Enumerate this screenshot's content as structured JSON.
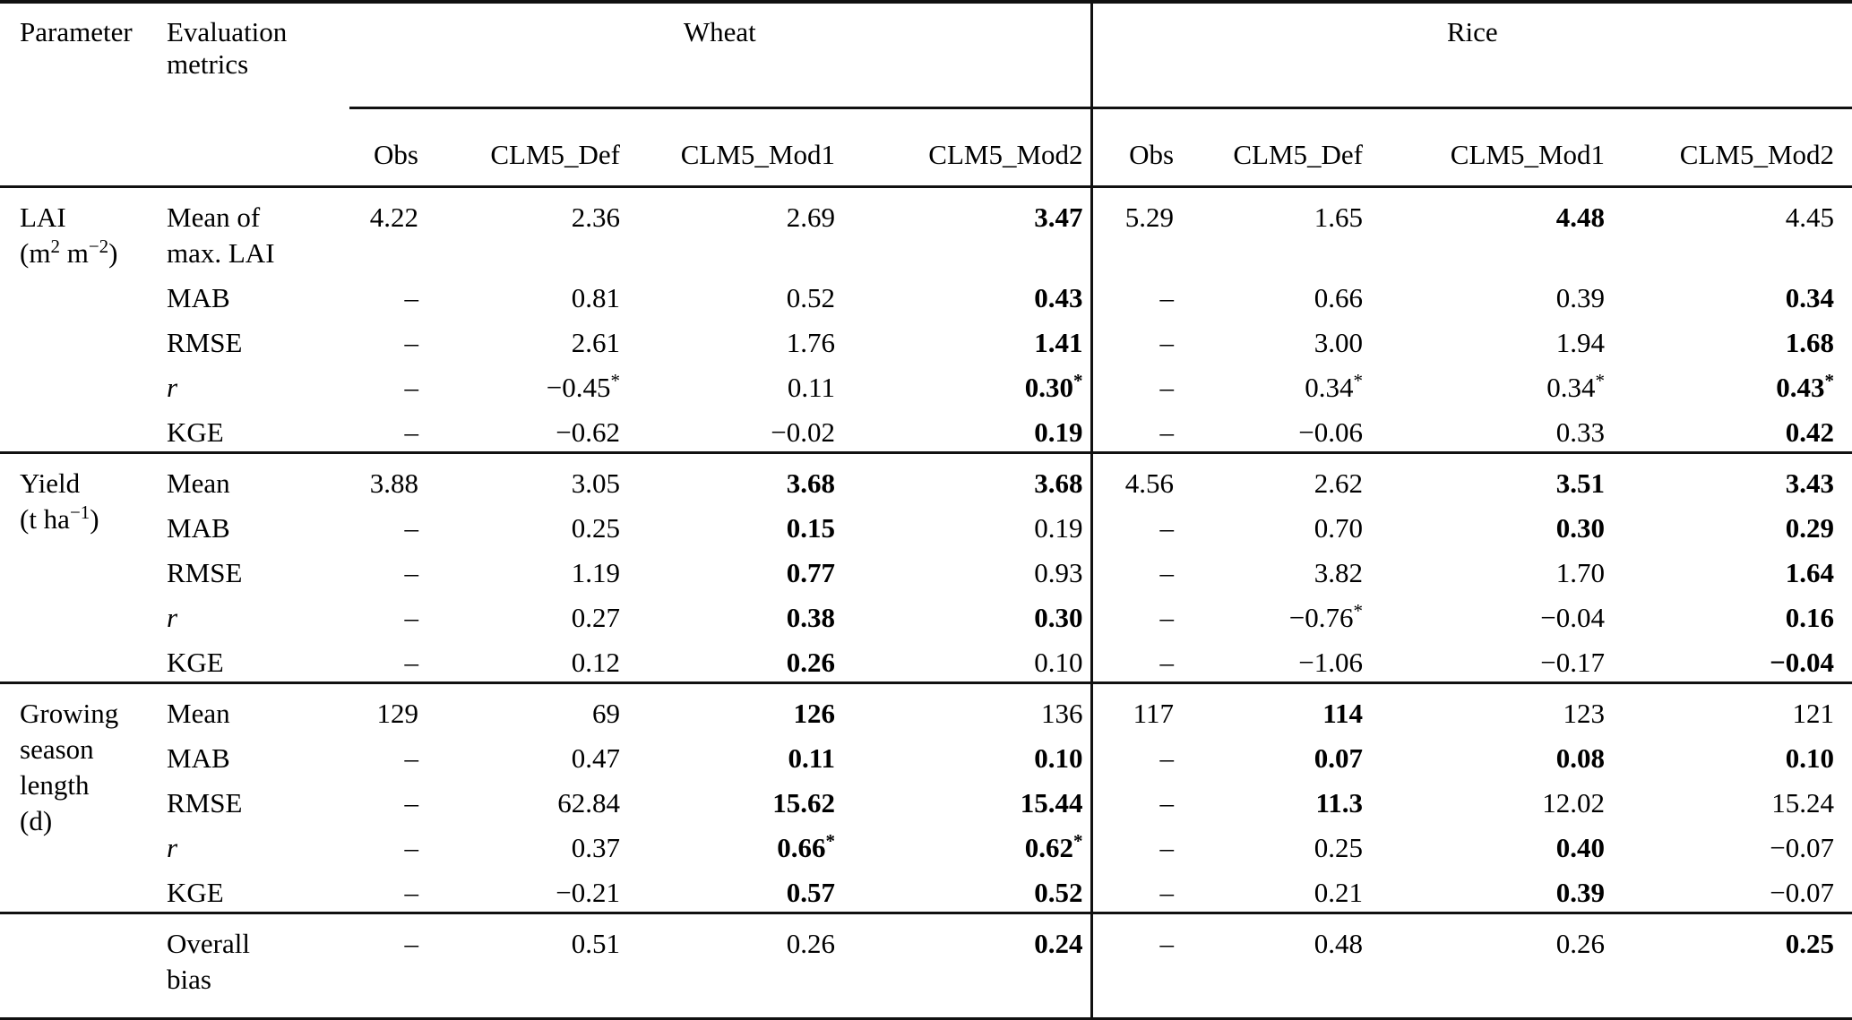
{
  "header": {
    "param_label": "Parameter",
    "metrics_label_lines": [
      "Evaluation",
      "metrics"
    ],
    "group_labels": [
      "Wheat",
      "Rice"
    ],
    "columns": [
      "Obs",
      "CLM5_Def",
      "CLM5_Mod1",
      "CLM5_Mod2"
    ]
  },
  "sections": [
    {
      "name": "LAI",
      "param_lines": [
        [
          {
            "t": "LAI"
          }
        ],
        [
          {
            "t": "(m"
          },
          {
            "t": "2",
            "sup": true
          },
          {
            "t": " m"
          },
          {
            "t": "−2",
            "sup": true
          },
          {
            "t": ")"
          }
        ]
      ],
      "rows": [
        {
          "metric_lines": [
            "Mean of",
            "max. LAI"
          ],
          "wheat": [
            {
              "v": "4.22"
            },
            {
              "v": "2.36"
            },
            {
              "v": "2.69"
            },
            {
              "v": "3.47",
              "b": true
            }
          ],
          "rice": [
            {
              "v": "5.29"
            },
            {
              "v": "1.65"
            },
            {
              "v": "4.48",
              "b": true
            },
            {
              "v": "4.45"
            }
          ]
        },
        {
          "metric_lines": [
            "MAB"
          ],
          "wheat": [
            {
              "v": "–"
            },
            {
              "v": "0.81"
            },
            {
              "v": "0.52"
            },
            {
              "v": "0.43",
              "b": true
            }
          ],
          "rice": [
            {
              "v": "–"
            },
            {
              "v": "0.66"
            },
            {
              "v": "0.39"
            },
            {
              "v": "0.34",
              "b": true
            }
          ]
        },
        {
          "metric_lines": [
            "RMSE"
          ],
          "wheat": [
            {
              "v": "–"
            },
            {
              "v": "2.61"
            },
            {
              "v": "1.76"
            },
            {
              "v": "1.41",
              "b": true
            }
          ],
          "rice": [
            {
              "v": "–"
            },
            {
              "v": "3.00"
            },
            {
              "v": "1.94"
            },
            {
              "v": "1.68",
              "b": true
            }
          ]
        },
        {
          "metric_lines": [
            "r"
          ],
          "italic": true,
          "wheat": [
            {
              "v": "–"
            },
            {
              "v": "−0.45",
              "s": true
            },
            {
              "v": "0.11"
            },
            {
              "v": "0.30",
              "b": true,
              "s": true
            }
          ],
          "rice": [
            {
              "v": "–"
            },
            {
              "v": "0.34",
              "s": true
            },
            {
              "v": "0.34",
              "s": true
            },
            {
              "v": "0.43",
              "b": true,
              "s": true
            }
          ]
        },
        {
          "metric_lines": [
            "KGE"
          ],
          "wheat": [
            {
              "v": "–"
            },
            {
              "v": "−0.62"
            },
            {
              "v": "−0.02"
            },
            {
              "v": "0.19",
              "b": true
            }
          ],
          "rice": [
            {
              "v": "–"
            },
            {
              "v": "−0.06"
            },
            {
              "v": "0.33"
            },
            {
              "v": "0.42",
              "b": true
            }
          ]
        }
      ]
    },
    {
      "name": "Yield",
      "param_lines": [
        [
          {
            "t": "Yield"
          }
        ],
        [
          {
            "t": "(t ha"
          },
          {
            "t": "−1",
            "sup": true
          },
          {
            "t": ")"
          }
        ]
      ],
      "rows": [
        {
          "metric_lines": [
            "Mean"
          ],
          "wheat": [
            {
              "v": "3.88"
            },
            {
              "v": "3.05"
            },
            {
              "v": "3.68",
              "b": true
            },
            {
              "v": "3.68",
              "b": true
            }
          ],
          "rice": [
            {
              "v": "4.56"
            },
            {
              "v": "2.62"
            },
            {
              "v": "3.51",
              "b": true
            },
            {
              "v": "3.43",
              "b": true
            }
          ]
        },
        {
          "metric_lines": [
            "MAB"
          ],
          "wheat": [
            {
              "v": "–"
            },
            {
              "v": "0.25"
            },
            {
              "v": "0.15",
              "b": true
            },
            {
              "v": "0.19"
            }
          ],
          "rice": [
            {
              "v": "–"
            },
            {
              "v": "0.70"
            },
            {
              "v": "0.30",
              "b": true
            },
            {
              "v": "0.29",
              "b": true
            }
          ]
        },
        {
          "metric_lines": [
            "RMSE"
          ],
          "wheat": [
            {
              "v": "–"
            },
            {
              "v": "1.19"
            },
            {
              "v": "0.77",
              "b": true
            },
            {
              "v": "0.93"
            }
          ],
          "rice": [
            {
              "v": "–"
            },
            {
              "v": "3.82"
            },
            {
              "v": "1.70"
            },
            {
              "v": "1.64",
              "b": true
            }
          ]
        },
        {
          "metric_lines": [
            "r"
          ],
          "italic": true,
          "wheat": [
            {
              "v": "–"
            },
            {
              "v": "0.27"
            },
            {
              "v": "0.38",
              "b": true
            },
            {
              "v": "0.30",
              "b": true
            }
          ],
          "rice": [
            {
              "v": "–"
            },
            {
              "v": "−0.76",
              "s": true
            },
            {
              "v": "−0.04"
            },
            {
              "v": "0.16",
              "b": true
            }
          ]
        },
        {
          "metric_lines": [
            "KGE"
          ],
          "wheat": [
            {
              "v": "–"
            },
            {
              "v": "0.12"
            },
            {
              "v": "0.26",
              "b": true
            },
            {
              "v": "0.10"
            }
          ],
          "rice": [
            {
              "v": "–"
            },
            {
              "v": "−1.06"
            },
            {
              "v": "−0.17"
            },
            {
              "v": "−0.04",
              "b": true
            }
          ]
        }
      ]
    },
    {
      "name": "Growing season length",
      "param_lines": [
        [
          {
            "t": "Growing"
          }
        ],
        [
          {
            "t": "season"
          }
        ],
        [
          {
            "t": "length"
          }
        ],
        [
          {
            "t": "(d)"
          }
        ]
      ],
      "rows": [
        {
          "metric_lines": [
            "Mean"
          ],
          "wheat": [
            {
              "v": "129"
            },
            {
              "v": "69"
            },
            {
              "v": "126",
              "b": true
            },
            {
              "v": "136"
            }
          ],
          "rice": [
            {
              "v": "117"
            },
            {
              "v": "114",
              "b": true
            },
            {
              "v": "123"
            },
            {
              "v": "121"
            }
          ]
        },
        {
          "metric_lines": [
            "MAB"
          ],
          "wheat": [
            {
              "v": "–"
            },
            {
              "v": "0.47"
            },
            {
              "v": "0.11",
              "b": true
            },
            {
              "v": "0.10",
              "b": true
            }
          ],
          "rice": [
            {
              "v": "–"
            },
            {
              "v": "0.07",
              "b": true
            },
            {
              "v": "0.08",
              "b": true
            },
            {
              "v": "0.10",
              "b": true
            }
          ]
        },
        {
          "metric_lines": [
            "RMSE"
          ],
          "wheat": [
            {
              "v": "–"
            },
            {
              "v": "62.84"
            },
            {
              "v": "15.62",
              "b": true
            },
            {
              "v": "15.44",
              "b": true
            }
          ],
          "rice": [
            {
              "v": "–"
            },
            {
              "v": "11.3",
              "b": true
            },
            {
              "v": "12.02"
            },
            {
              "v": "15.24"
            }
          ]
        },
        {
          "metric_lines": [
            "r"
          ],
          "italic": true,
          "wheat": [
            {
              "v": "–"
            },
            {
              "v": "0.37"
            },
            {
              "v": "0.66",
              "b": true,
              "s": true
            },
            {
              "v": "0.62",
              "b": true,
              "s": true
            }
          ],
          "rice": [
            {
              "v": "–"
            },
            {
              "v": "0.25"
            },
            {
              "v": "0.40",
              "b": true
            },
            {
              "v": "−0.07"
            }
          ]
        },
        {
          "metric_lines": [
            "KGE"
          ],
          "wheat": [
            {
              "v": "–"
            },
            {
              "v": "−0.21"
            },
            {
              "v": "0.57",
              "b": true
            },
            {
              "v": "0.52",
              "b": true
            }
          ],
          "rice": [
            {
              "v": "–"
            },
            {
              "v": "0.21"
            },
            {
              "v": "0.39",
              "b": true
            },
            {
              "v": "−0.07"
            }
          ]
        }
      ]
    },
    {
      "name": "Overall bias",
      "param_lines": [],
      "rows": [
        {
          "metric_lines": [
            "Overall",
            "bias"
          ],
          "wheat": [
            {
              "v": "–"
            },
            {
              "v": "0.51"
            },
            {
              "v": "0.26"
            },
            {
              "v": "0.24",
              "b": true
            }
          ],
          "rice": [
            {
              "v": "–"
            },
            {
              "v": "0.48"
            },
            {
              "v": "0.26"
            },
            {
              "v": "0.25",
              "b": true
            }
          ]
        }
      ]
    }
  ]
}
